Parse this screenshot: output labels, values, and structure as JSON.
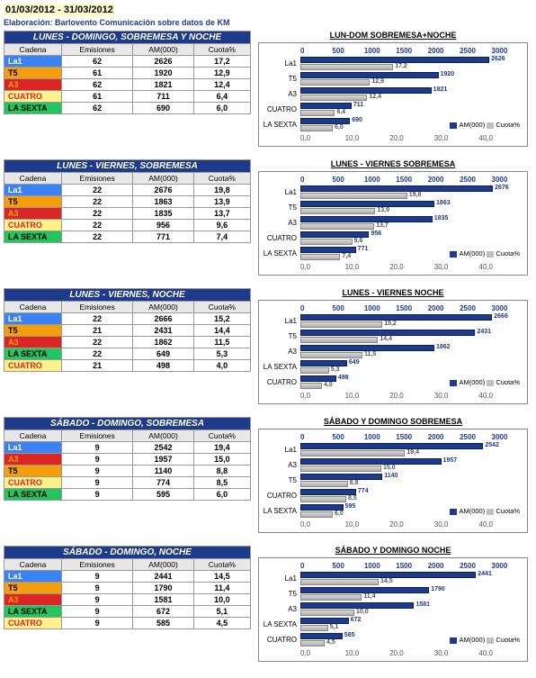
{
  "date_range": "01/03/2012 - 31/03/2012",
  "elaboration": "Elaboración: Barlovento Comunicación sobre datos de KM",
  "columns": {
    "cadena": "Cadena",
    "emisiones": "Emisiones",
    "am": "AM(000)",
    "cuota": "Cuota%"
  },
  "legend": {
    "am": "AM(000)",
    "cuota": "Cuota%"
  },
  "colors": {
    "title_bg": "#1e3a8a",
    "am_bar": "#1e3a8a",
    "cuota_bar": "#c0c0c0",
    "channels": {
      "La1": {
        "bg": "#3b82f6",
        "fg": "#ffffff"
      },
      "T5": {
        "bg": "#f59e0b",
        "fg": "#000000"
      },
      "A3": {
        "bg": "#dc2626",
        "fg": "#f59e0b"
      },
      "CUATRO": {
        "bg": "#fef08a",
        "fg": "#dc2626"
      },
      "LA SEXTA": {
        "bg": "#22c55e",
        "fg": "#000000"
      }
    }
  },
  "chart_axis": {
    "top_max": 3000,
    "top_step": 500,
    "bottom_max": 40.0,
    "bottom_step": 10.0
  },
  "sections": [
    {
      "table_title": "LUNES - DOMINGO, SOBREMESA Y NOCHE",
      "chart_title": "LUN-DOM SOBREMESA+NOCHE",
      "rows": [
        {
          "ch": "La1",
          "em": 62,
          "am": 2626,
          "cuota": "17,2"
        },
        {
          "ch": "T5",
          "em": 61,
          "am": 1920,
          "cuota": "12,9"
        },
        {
          "ch": "A3",
          "em": 62,
          "am": 1821,
          "cuota": "12,4"
        },
        {
          "ch": "CUATRO",
          "em": 61,
          "am": 711,
          "cuota": "6,4"
        },
        {
          "ch": "LA SEXTA",
          "em": 62,
          "am": 690,
          "cuota": "6,0"
        }
      ]
    },
    {
      "table_title": "LUNES - VIERNES, SOBREMESA",
      "chart_title": "LUNES - VIERNES SOBREMESA",
      "rows": [
        {
          "ch": "La1",
          "em": 22,
          "am": 2676,
          "cuota": "19,8"
        },
        {
          "ch": "T5",
          "em": 22,
          "am": 1863,
          "cuota": "13,9"
        },
        {
          "ch": "A3",
          "em": 22,
          "am": 1835,
          "cuota": "13,7"
        },
        {
          "ch": "CUATRO",
          "em": 22,
          "am": 956,
          "cuota": "9,6"
        },
        {
          "ch": "LA SEXTA",
          "em": 22,
          "am": 771,
          "cuota": "7,4"
        }
      ]
    },
    {
      "table_title": "LUNES - VIERNES, NOCHE",
      "chart_title": "LUNES - VIERNES  NOCHE",
      "rows": [
        {
          "ch": "La1",
          "em": 22,
          "am": 2666,
          "cuota": "15,2"
        },
        {
          "ch": "T5",
          "em": 21,
          "am": 2431,
          "cuota": "14,4"
        },
        {
          "ch": "A3",
          "em": 22,
          "am": 1862,
          "cuota": "11,5"
        },
        {
          "ch": "LA SEXTA",
          "em": 22,
          "am": 649,
          "cuota": "5,3"
        },
        {
          "ch": "CUATRO",
          "em": 21,
          "am": 498,
          "cuota": "4,0"
        }
      ]
    },
    {
      "table_title": "SÁBADO - DOMINGO, SOBREMESA",
      "chart_title": "SÁBADO Y DOMINGO SOBREMESA",
      "rows": [
        {
          "ch": "La1",
          "em": 9,
          "am": 2542,
          "cuota": "19,4"
        },
        {
          "ch": "A3",
          "em": 9,
          "am": 1957,
          "cuota": "15,0"
        },
        {
          "ch": "T5",
          "em": 9,
          "am": 1140,
          "cuota": "8,8"
        },
        {
          "ch": "CUATRO",
          "em": 9,
          "am": 774,
          "cuota": "8,5"
        },
        {
          "ch": "LA SEXTA",
          "em": 9,
          "am": 595,
          "cuota": "6,0"
        }
      ]
    },
    {
      "table_title": "SÁBADO - DOMINGO, NOCHE",
      "chart_title": "SÁBADO Y DOMINGO  NOCHE",
      "rows": [
        {
          "ch": "La1",
          "em": 9,
          "am": 2441,
          "cuota": "14,5"
        },
        {
          "ch": "T5",
          "em": 9,
          "am": 1790,
          "cuota": "11,4"
        },
        {
          "ch": "A3",
          "em": 9,
          "am": 1581,
          "cuota": "10,0"
        },
        {
          "ch": "LA SEXTA",
          "em": 9,
          "am": 672,
          "cuota": "5,1"
        },
        {
          "ch": "CUATRO",
          "em": 9,
          "am": 585,
          "cuota": "4,5"
        }
      ]
    }
  ]
}
